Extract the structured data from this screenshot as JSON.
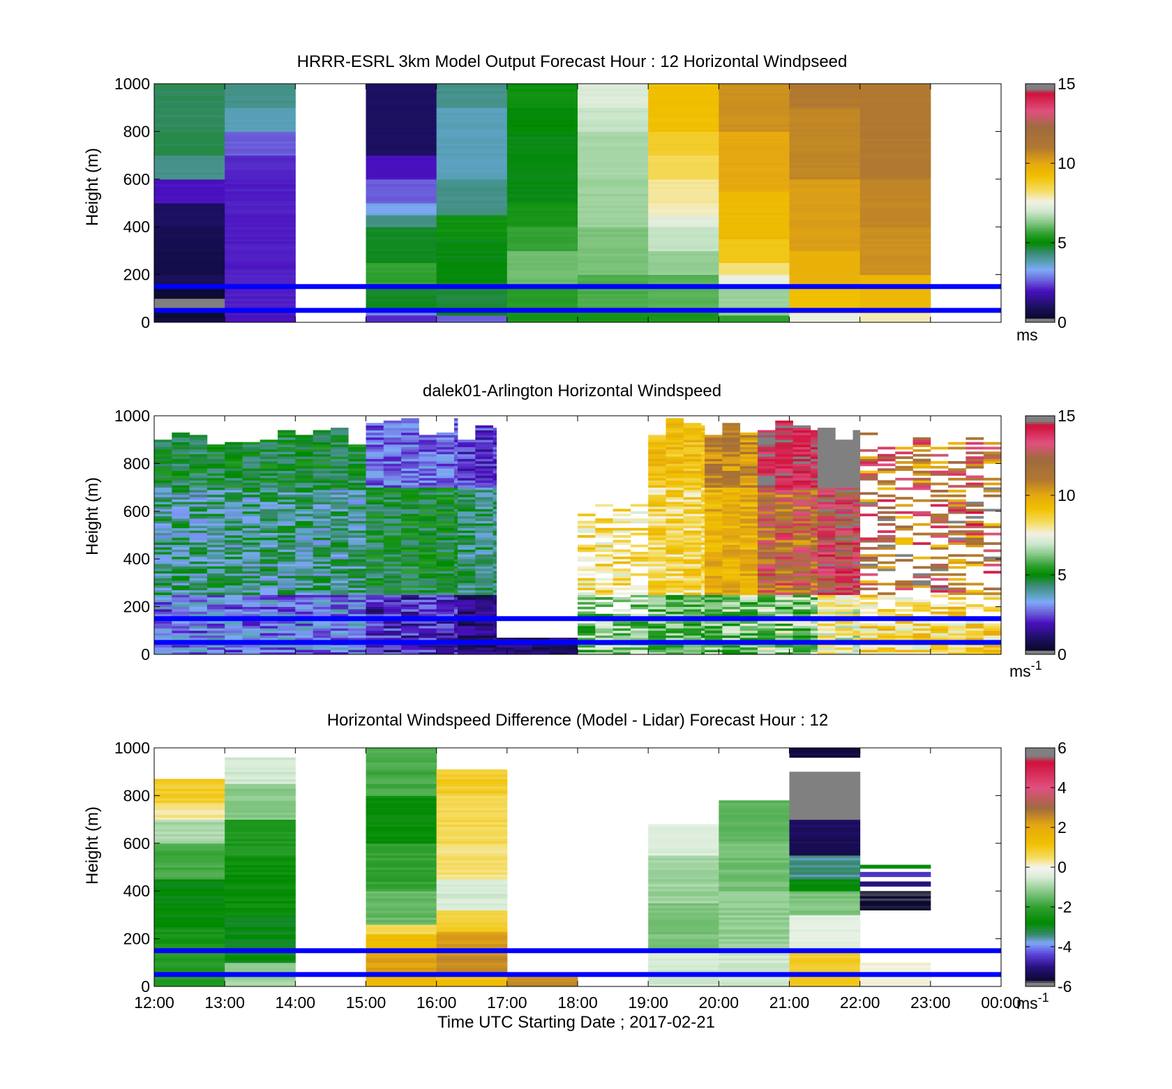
{
  "figure": {
    "xlabel": "Time UTC  Starting Date ; 2017-02-21",
    "x_tick_labels": [
      "12:00",
      "13:00",
      "14:00",
      "15:00",
      "16:00",
      "17:00",
      "18:00",
      "19:00",
      "20:00",
      "21:00",
      "22:00",
      "23:00",
      "00:00"
    ]
  },
  "chart_data": [
    {
      "type": "heatmap",
      "title": "HRRR-ESRL 3km Model Output   Forecast Hour : 12 Horizontal Windpseed",
      "ylabel": "Height (m)",
      "xlim_hours_utc": [
        12,
        24
      ],
      "ylim": [
        0,
        1000
      ],
      "yticks": [
        "0",
        "200",
        "400",
        "600",
        "800",
        "1000"
      ],
      "colorbar": {
        "min": 0,
        "max": 15,
        "ticks": [
          "0",
          "5",
          "10",
          "15"
        ],
        "unit": "ms",
        "unit_sup": ""
      },
      "reference_lines_m": [
        50,
        150
      ],
      "reference_line_color": "#0000ff",
      "colormap": "wind",
      "columns": [
        {
          "start": 12,
          "end": 13,
          "levels": [
            [
              0,
              20,
              0.6
            ],
            [
              20,
              60,
              0.3
            ],
            [
              60,
              100,
              0.0
            ],
            [
              100,
              160,
              0.4
            ],
            [
              160,
              200,
              0.9
            ],
            [
              200,
              300,
              0.7
            ],
            [
              300,
              400,
              0.8
            ],
            [
              400,
              500,
              1.0
            ],
            [
              500,
              600,
              2.0
            ],
            [
              600,
              700,
              4.2
            ],
            [
              700,
              800,
              4.6
            ],
            [
              800,
              1000,
              4.5
            ]
          ]
        },
        {
          "start": 13,
          "end": 14,
          "levels": [
            [
              0,
              50,
              2.0
            ],
            [
              50,
              600,
              2.1
            ],
            [
              600,
              700,
              2.2
            ],
            [
              700,
              800,
              2.6
            ],
            [
              800,
              900,
              3.8
            ],
            [
              900,
              1000,
              4.2
            ]
          ]
        },
        {
          "start": 15,
          "end": 16,
          "levels": [
            [
              0,
              30,
              2.2
            ],
            [
              30,
              60,
              3.0
            ],
            [
              60,
              150,
              4.8
            ],
            [
              150,
              250,
              5.6
            ],
            [
              250,
              400,
              4.8
            ],
            [
              400,
              450,
              4.2
            ],
            [
              450,
              500,
              3.4
            ],
            [
              500,
              600,
              2.6
            ],
            [
              600,
              700,
              2.0
            ],
            [
              700,
              1000,
              1.0
            ]
          ]
        },
        {
          "start": 16,
          "end": 17,
          "levels": [
            [
              0,
              30,
              2.6
            ],
            [
              30,
              60,
              5.0
            ],
            [
              60,
              150,
              4.7
            ],
            [
              150,
              350,
              4.9
            ],
            [
              350,
              450,
              5.2
            ],
            [
              450,
              600,
              4.2
            ],
            [
              600,
              900,
              3.8
            ],
            [
              900,
              1000,
              4.2
            ]
          ]
        },
        {
          "start": 17,
          "end": 18,
          "levels": [
            [
              0,
              40,
              5.3
            ],
            [
              40,
              150,
              5.5
            ],
            [
              150,
              300,
              6.1
            ],
            [
              300,
              400,
              5.6
            ],
            [
              400,
              500,
              5.3
            ],
            [
              500,
              600,
              4.9
            ],
            [
              600,
              800,
              4.9
            ],
            [
              800,
              900,
              5.0
            ],
            [
              900,
              1000,
              5.2
            ]
          ]
        },
        {
          "start": 18,
          "end": 19,
          "levels": [
            [
              0,
              40,
              5.3
            ],
            [
              40,
              200,
              5.8
            ],
            [
              200,
              400,
              6.2
            ],
            [
              400,
              600,
              6.5
            ],
            [
              600,
              800,
              6.6
            ],
            [
              800,
              900,
              6.9
            ],
            [
              900,
              1000,
              7.2
            ]
          ]
        },
        {
          "start": 19,
          "end": 20,
          "levels": [
            [
              0,
              40,
              5.3
            ],
            [
              40,
              200,
              5.9
            ],
            [
              200,
              300,
              6.4
            ],
            [
              300,
              400,
              6.9
            ],
            [
              400,
              450,
              7.3
            ],
            [
              450,
              500,
              7.8
            ],
            [
              500,
              600,
              8.0
            ],
            [
              600,
              700,
              8.4
            ],
            [
              700,
              800,
              8.8
            ],
            [
              800,
              1000,
              9.2
            ]
          ]
        },
        {
          "start": 20,
          "end": 21,
          "levels": [
            [
              0,
              30,
              5.6
            ],
            [
              30,
              150,
              6.5
            ],
            [
              150,
              200,
              7.5
            ],
            [
              200,
              250,
              8.2
            ],
            [
              250,
              350,
              9.0
            ],
            [
              350,
              550,
              9.4
            ],
            [
              550,
              800,
              10.0
            ],
            [
              800,
              1000,
              10.5
            ]
          ]
        },
        {
          "start": 21,
          "end": 22,
          "levels": [
            [
              0,
              40,
              7.5
            ],
            [
              40,
              150,
              9.2
            ],
            [
              150,
              300,
              9.7
            ],
            [
              300,
              600,
              10.2
            ],
            [
              600,
              900,
              10.7
            ],
            [
              900,
              1000,
              11.0
            ]
          ]
        },
        {
          "start": 22,
          "end": 23,
          "levels": [
            [
              0,
              40,
              7.8
            ],
            [
              40,
              200,
              9.5
            ],
            [
              200,
              400,
              10.5
            ],
            [
              400,
              600,
              10.7
            ],
            [
              600,
              1000,
              11.0
            ]
          ]
        }
      ]
    },
    {
      "type": "heatmap",
      "title": "dalek01-Arlington  Horizontal Windspeed",
      "ylabel": "Height (m)",
      "xlim_hours_utc": [
        12,
        24
      ],
      "ylim": [
        0,
        1000
      ],
      "yticks": [
        "0",
        "200",
        "400",
        "600",
        "800",
        "1000"
      ],
      "colorbar": {
        "min": 0,
        "max": 15,
        "ticks": [
          "0",
          "5",
          "10",
          "15"
        ],
        "unit": "ms",
        "unit_sup": "-1"
      },
      "reference_lines_m": [
        50,
        150
      ],
      "reference_line_color": "#0000ff",
      "colormap": "wind",
      "profiles": [
        {
          "start": 12.0,
          "end": 15.0,
          "top": 960,
          "low": [
            2,
            4
          ],
          "mid": [
            3,
            5.2
          ],
          "high": [
            4,
            5.5
          ]
        },
        {
          "start": 15.0,
          "end": 16.3,
          "top": 1000,
          "low": [
            1,
            3
          ],
          "mid": [
            4,
            5.6
          ],
          "high": [
            2,
            3.5
          ]
        },
        {
          "start": 16.3,
          "end": 16.85,
          "top": 1000,
          "low": [
            0.5,
            2
          ],
          "mid": [
            3.5,
            5
          ],
          "high": [
            1.5,
            3
          ]
        },
        {
          "start": 16.85,
          "end": 18.0,
          "top": 80,
          "low": [
            0.6,
            1.6
          ],
          "mid": [
            1,
            2
          ],
          "high": [
            1,
            2
          ]
        },
        {
          "start": 18.0,
          "end": 19.0,
          "top": 650,
          "sparse": 0.55,
          "low": [
            5,
            7.5
          ],
          "mid": [
            7,
            9.5
          ],
          "high": [
            6,
            8
          ]
        },
        {
          "start": 19.0,
          "end": 19.8,
          "top": 1000,
          "low": [
            5,
            7
          ],
          "mid": [
            7.5,
            9.5
          ],
          "high": [
            8.5,
            10
          ]
        },
        {
          "start": 19.8,
          "end": 20.55,
          "top": 1000,
          "low": [
            5,
            7.5
          ],
          "mid": [
            9,
            10.5
          ],
          "high": [
            9.5,
            12
          ]
        },
        {
          "start": 20.55,
          "end": 21.4,
          "top": 1000,
          "low": [
            5,
            8
          ],
          "mid": [
            10,
            14
          ],
          "high": [
            13.5,
            15
          ]
        },
        {
          "start": 21.4,
          "end": 22.0,
          "top": 1000,
          "low": [
            6,
            9
          ],
          "mid": [
            12,
            15
          ],
          "high": [
            15.5,
            15.5
          ]
        },
        {
          "start": 22.0,
          "end": 24.0,
          "top": 960,
          "sparse": 0.45,
          "low": [
            7,
            10
          ],
          "mid": [
            9,
            15.5
          ],
          "high": [
            9,
            14
          ]
        }
      ]
    },
    {
      "type": "heatmap",
      "title": "Horizontal Windspeed Difference (Model - Lidar) Forecast Hour : 12",
      "ylabel": "Height (m)",
      "xlim_hours_utc": [
        12,
        24
      ],
      "ylim": [
        0,
        1000
      ],
      "yticks": [
        "0",
        "200",
        "400",
        "600",
        "800",
        "1000"
      ],
      "colorbar": {
        "min": -6,
        "max": 6,
        "ticks": [
          "-6",
          "-4",
          "-2",
          "0",
          "2",
          "4",
          "6"
        ],
        "unit": "ms",
        "unit_sup": "-1"
      },
      "reference_lines_m": [
        50,
        150
      ],
      "reference_line_color": "#0000ff",
      "colormap": "diff",
      "columns": [
        {
          "start": 12,
          "end": 13,
          "top": 870,
          "levels": [
            [
              0,
              150,
              -2.2
            ],
            [
              150,
              250,
              -2.4
            ],
            [
              250,
              450,
              -2.8
            ],
            [
              450,
              600,
              -1.8
            ],
            [
              600,
              700,
              -0.9
            ],
            [
              700,
              770,
              0.3
            ],
            [
              770,
              870,
              0.9
            ]
          ]
        },
        {
          "start": 13,
          "end": 14,
          "top": 960,
          "levels": [
            [
              0,
              100,
              -1.0
            ],
            [
              100,
              300,
              -2.9
            ],
            [
              300,
              550,
              -2.6
            ],
            [
              550,
              700,
              -2.3
            ],
            [
              700,
              850,
              -1.2
            ],
            [
              850,
              960,
              -0.5
            ]
          ]
        },
        {
          "start": 15,
          "end": 16,
          "top": 1000,
          "levels": [
            [
              0,
              60,
              1.5
            ],
            [
              60,
              150,
              2.2
            ],
            [
              150,
              220,
              1.4
            ],
            [
              220,
              260,
              0.6
            ],
            [
              260,
              400,
              -1.5
            ],
            [
              400,
              600,
              -2.0
            ],
            [
              600,
              800,
              -2.7
            ],
            [
              800,
              1000,
              -1.8
            ]
          ]
        },
        {
          "start": 16,
          "end": 17,
          "top": 910,
          "levels": [
            [
              0,
              60,
              1.2
            ],
            [
              60,
              150,
              2.5
            ],
            [
              150,
              230,
              2.3
            ],
            [
              230,
              320,
              0.8
            ],
            [
              320,
              450,
              -0.5
            ],
            [
              450,
              600,
              0.4
            ],
            [
              600,
              800,
              0.6
            ],
            [
              800,
              910,
              0.9
            ]
          ]
        },
        {
          "start": 17,
          "end": 18,
          "top": 40,
          "levels": [
            [
              0,
              40,
              2.5
            ]
          ]
        },
        {
          "start": 19,
          "end": 20,
          "top": 680,
          "levels": [
            [
              0,
              150,
              -0.5
            ],
            [
              150,
              350,
              -1.3
            ],
            [
              350,
              550,
              -1.0
            ],
            [
              550,
              680,
              -0.4
            ],
            [
              715,
              730,
              0.5
            ]
          ]
        },
        {
          "start": 20,
          "end": 21,
          "top": 780,
          "levels": [
            [
              0,
              150,
              -0.6
            ],
            [
              150,
              400,
              -1.1
            ],
            [
              400,
              600,
              -1.4
            ],
            [
              600,
              780,
              -1.6
            ]
          ]
        },
        {
          "start": 21,
          "end": 22,
          "top": 1000,
          "levels": [
            [
              0,
              150,
              0.9
            ],
            [
              150,
              300,
              -0.3
            ],
            [
              300,
              400,
              -1.3
            ],
            [
              400,
              450,
              -2.8
            ],
            [
              450,
              550,
              -3.5
            ],
            [
              550,
              700,
              -5.3
            ],
            [
              700,
              900,
              6.0
            ],
            [
              960,
              1000,
              -5.5
            ]
          ]
        },
        {
          "start": 22,
          "end": 23,
          "top": 510,
          "levels": [
            [
              0,
              100,
              0.0
            ],
            [
              320,
              400,
              -5.6
            ],
            [
              420,
              440,
              -5.0
            ],
            [
              460,
              480,
              -4.5
            ],
            [
              495,
              510,
              -2.6
            ]
          ]
        }
      ]
    }
  ]
}
